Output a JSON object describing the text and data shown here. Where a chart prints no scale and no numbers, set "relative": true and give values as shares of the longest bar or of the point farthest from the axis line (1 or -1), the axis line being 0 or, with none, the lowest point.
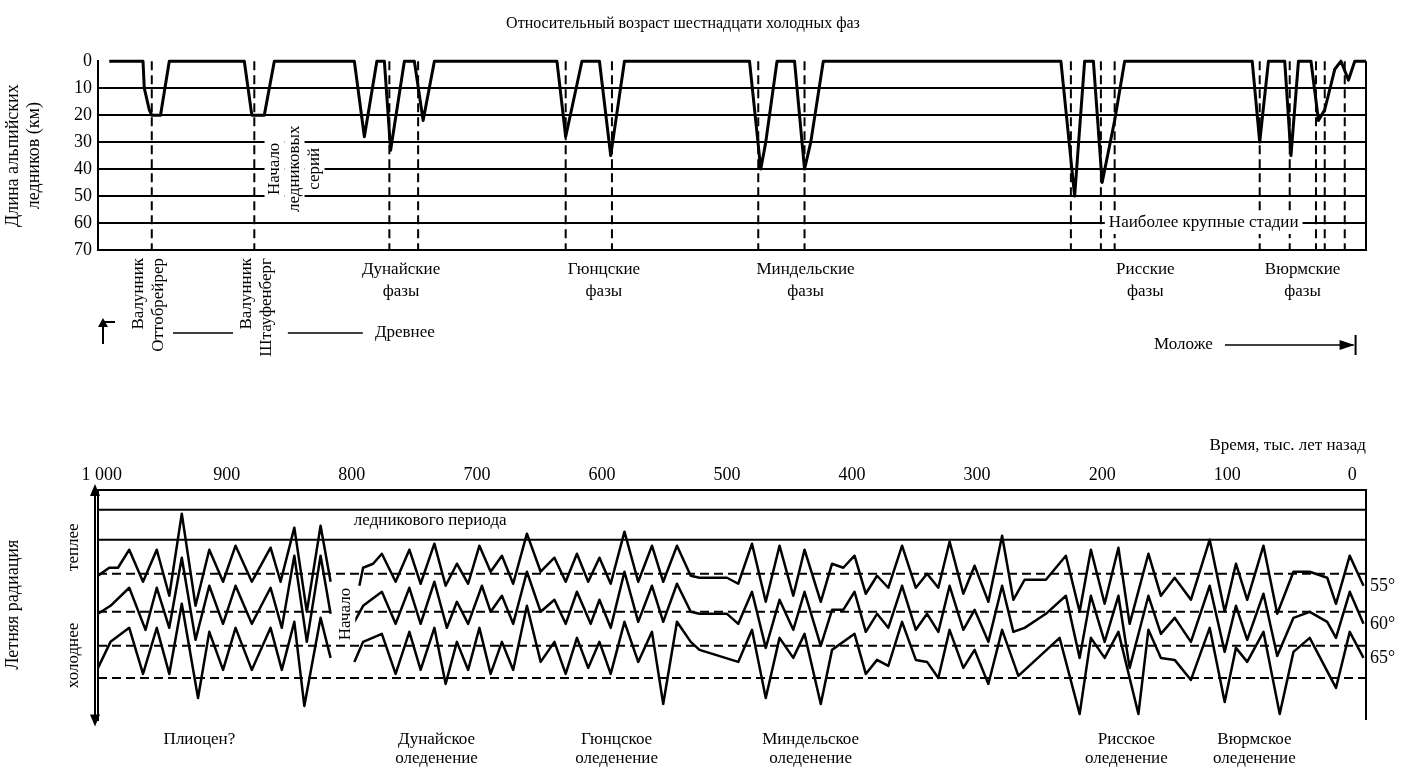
{
  "chart_data": [
    {
      "type": "line",
      "title": "Относительный возраст шестнадцати холодных фаз",
      "ylabel": "Длина альпийских ледников (км)",
      "xlim": [
        1003,
        -11
      ],
      "ylim": [
        70,
        0
      ],
      "yticks": [
        0,
        10,
        20,
        30,
        40,
        50,
        60,
        70
      ],
      "grid": "y",
      "tick_labels": "y",
      "series": [
        {
          "color": "#000000",
          "x": [
            994,
            967,
            966,
            962,
            960,
            953,
            946,
            886,
            880,
            870,
            862,
            798,
            790,
            780,
            774,
            769,
            758,
            750,
            743,
            734,
            636,
            629,
            616,
            602,
            593,
            582,
            482,
            473,
            469,
            460,
            446,
            438,
            433,
            423,
            233,
            222,
            214,
            207,
            200,
            190,
            182,
            80,
            74,
            67,
            54,
            49,
            43,
            33,
            27,
            22,
            14,
            9,
            3,
            -2,
            -11
          ],
          "values": [
            0,
            0,
            10,
            18,
            20,
            20,
            0,
            0,
            20,
            20,
            0,
            0,
            28,
            0,
            0,
            33,
            0,
            0,
            22,
            0,
            0,
            28,
            0,
            0,
            35,
            0,
            0,
            40,
            30,
            0,
            0,
            40,
            30,
            0,
            0,
            50,
            0,
            0,
            45,
            22,
            0,
            0,
            30,
            0,
            0,
            35,
            0,
            0,
            22,
            18,
            3,
            0,
            7,
            0,
            0
          ]
        }
      ],
      "ref_lines": [
        {
          "axis": "x",
          "value": 960,
          "line_style": "dashed"
        },
        {
          "axis": "x",
          "value": 878,
          "line_style": "dashed"
        },
        {
          "axis": "x",
          "value": 770,
          "line_style": "dashed"
        },
        {
          "axis": "x",
          "value": 747,
          "line_style": "dashed"
        },
        {
          "axis": "x",
          "value": 629,
          "line_style": "dashed"
        },
        {
          "axis": "x",
          "value": 592,
          "line_style": "dashed"
        },
        {
          "axis": "x",
          "value": 475,
          "line_style": "dashed"
        },
        {
          "axis": "x",
          "value": 438,
          "line_style": "dashed"
        },
        {
          "axis": "x",
          "value": 225,
          "line_style": "dashed"
        },
        {
          "axis": "x",
          "value": 201,
          "line_style": "dashed"
        },
        {
          "axis": "x",
          "value": 190,
          "line_style": "dashed"
        },
        {
          "axis": "x",
          "value": 74,
          "line_style": "dashed"
        },
        {
          "axis": "x",
          "value": 50,
          "line_style": "dashed"
        },
        {
          "axis": "x",
          "value": 29,
          "line_style": "dashed"
        },
        {
          "axis": "x",
          "value": 22,
          "line_style": "dashed"
        },
        {
          "axis": "x",
          "value": 6,
          "line_style": "dashed"
        }
      ],
      "annotations": [
        "Валунник Оттобрейрер",
        "Валунник Штауфенберг",
        "Начало ледниковых серий",
        "Дунайские фазы",
        "Гюнцские фазы",
        "Миндельские фазы",
        "Рисские фазы",
        "Вюрмские фазы",
        "Наиболее крупные стадии",
        "Древнее",
        "Моложе"
      ]
    },
    {
      "type": "line",
      "xlabel": "Время, тыс. лет назад",
      "ylabel": "Летняя радиация",
      "xlim": [
        1003,
        -11
      ],
      "xticks": [
        {
          "value": 1000,
          "label": "1 000"
        },
        900,
        800,
        700,
        600,
        500,
        400,
        300,
        200,
        100,
        0
      ],
      "relative": true,
      "tick_labels": "x",
      "series": [
        {
          "name": "55°",
          "color": "#000000",
          "x": [
            1003,
            994,
            987,
            978,
            967,
            956,
            946,
            936,
            925,
            914,
            903,
            893,
            880,
            865,
            857,
            846,
            836,
            825,
            817,
            806,
            794,
            791,
            783,
            776,
            765,
            754,
            745,
            734,
            725,
            716,
            707,
            698,
            689,
            680,
            671,
            660,
            649,
            638,
            629,
            620,
            611,
            602,
            593,
            582,
            571,
            560,
            551,
            540,
            529,
            522,
            500,
            491,
            480,
            469,
            458,
            447,
            438,
            425,
            416,
            407,
            398,
            389,
            380,
            371,
            360,
            349,
            340,
            331,
            322,
            311,
            302,
            291,
            280,
            271,
            262,
            245,
            229,
            218,
            209,
            198,
            187,
            178,
            163,
            153,
            142,
            129,
            114,
            102,
            93,
            84,
            71,
            60,
            47,
            34,
            20,
            13,
            2,
            -9
          ],
          "values": [
            0.69,
            0.73,
            0.73,
            0.82,
            0.66,
            0.82,
            0.59,
            1.0,
            0.54,
            0.82,
            0.66,
            0.84,
            0.66,
            0.83,
            0.66,
            0.93,
            0.51,
            0.94,
            0.66,
            null,
            0.64,
            0.73,
            0.75,
            0.8,
            0.66,
            0.82,
            0.65,
            0.85,
            0.64,
            0.75,
            0.65,
            0.84,
            0.71,
            0.79,
            0.65,
            0.9,
            0.71,
            0.78,
            0.66,
            0.8,
            0.66,
            0.78,
            0.65,
            0.91,
            0.66,
            0.84,
            0.66,
            0.84,
            0.69,
            0.68,
            0.68,
            0.65,
            0.85,
            0.56,
            0.84,
            0.59,
            0.82,
            0.56,
            0.75,
            0.73,
            0.79,
            0.6,
            0.69,
            0.63,
            0.84,
            0.63,
            0.7,
            0.63,
            0.86,
            0.6,
            0.74,
            0.56,
            0.89,
            0.57,
            0.67,
            0.67,
            0.79,
            0.51,
            0.82,
            0.55,
            0.83,
            0.45,
            0.8,
            0.59,
            0.68,
            0.57,
            0.87,
            0.51,
            0.75,
            0.57,
            0.84,
            0.5,
            0.71,
            0.71,
            0.68,
            0.55,
            0.79,
            0.64
          ]
        },
        {
          "name": "60°",
          "color": "#000000",
          "x": [
            1003,
            993,
            978,
            965,
            956,
            946,
            936,
            925,
            914,
            903,
            893,
            880,
            865,
            856,
            846,
            836,
            825,
            817,
            806,
            798,
            791,
            776,
            765,
            754,
            745,
            734,
            724,
            716,
            707,
            696,
            689,
            680,
            671,
            660,
            649,
            638,
            629,
            620,
            609,
            602,
            593,
            582,
            571,
            560,
            551,
            540,
            529,
            522,
            500,
            491,
            480,
            469,
            458,
            447,
            438,
            425,
            416,
            407,
            398,
            389,
            380,
            371,
            360,
            349,
            340,
            331,
            322,
            311,
            302,
            291,
            280,
            271,
            262,
            245,
            229,
            218,
            209,
            198,
            187,
            178,
            163,
            153,
            142,
            129,
            114,
            102,
            93,
            84,
            71,
            60,
            47,
            34,
            20,
            13,
            2,
            -9
          ],
          "values": [
            0.5,
            0.54,
            0.63,
            0.42,
            0.63,
            0.43,
            0.78,
            0.37,
            0.64,
            0.45,
            0.64,
            0.45,
            0.63,
            0.43,
            0.79,
            0.36,
            0.79,
            0.5,
            null,
            0.46,
            0.54,
            0.61,
            0.45,
            0.63,
            0.45,
            0.66,
            0.43,
            0.56,
            0.45,
            0.64,
            0.51,
            0.59,
            0.45,
            0.71,
            0.51,
            0.57,
            0.45,
            0.61,
            0.45,
            0.57,
            0.43,
            0.71,
            0.46,
            0.64,
            0.46,
            0.65,
            0.51,
            0.5,
            0.5,
            0.45,
            0.61,
            0.33,
            0.57,
            0.42,
            0.61,
            0.34,
            0.52,
            0.52,
            0.61,
            0.41,
            0.5,
            0.43,
            0.64,
            0.42,
            0.5,
            0.41,
            0.64,
            0.42,
            0.52,
            0.36,
            0.64,
            0.41,
            0.43,
            0.5,
            0.59,
            0.28,
            0.59,
            0.36,
            0.59,
            0.23,
            0.59,
            0.4,
            0.48,
            0.36,
            0.64,
            0.31,
            0.54,
            0.37,
            0.6,
            0.29,
            0.48,
            0.51,
            0.46,
            0.38,
            0.61,
            0.45
          ]
        },
        {
          "name": "65°",
          "color": "#000000",
          "x": [
            1003,
            993,
            978,
            967,
            956,
            946,
            936,
            923,
            914,
            903,
            893,
            880,
            865,
            856,
            846,
            838,
            825,
            817,
            806,
            798,
            791,
            776,
            765,
            754,
            745,
            734,
            725,
            716,
            707,
            698,
            689,
            680,
            671,
            660,
            649,
            638,
            629,
            620,
            611,
            602,
            593,
            582,
            571,
            560,
            551,
            540,
            529,
            522,
            491,
            480,
            469,
            458,
            447,
            438,
            425,
            416,
            398,
            389,
            380,
            371,
            360,
            349,
            340,
            331,
            322,
            311,
            302,
            291,
            280,
            267,
            234,
            218,
            209,
            198,
            187,
            171,
            163,
            153,
            142,
            129,
            114,
            102,
            93,
            84,
            71,
            58,
            47,
            34,
            13,
            2,
            -9
          ],
          "values": [
            0.23,
            0.36,
            0.43,
            0.2,
            0.43,
            0.2,
            0.55,
            0.08,
            0.41,
            0.22,
            0.43,
            0.22,
            0.43,
            0.22,
            0.46,
            0.04,
            0.48,
            0.28,
            null,
            0.26,
            0.36,
            0.4,
            0.2,
            0.41,
            0.22,
            0.43,
            0.15,
            0.36,
            0.22,
            0.43,
            0.2,
            0.36,
            0.22,
            0.54,
            0.26,
            0.36,
            0.2,
            0.38,
            0.23,
            0.36,
            0.2,
            0.46,
            0.26,
            0.41,
            0.05,
            0.46,
            0.36,
            0.32,
            0.26,
            0.42,
            0.08,
            0.38,
            0.28,
            0.4,
            0.05,
            0.32,
            0.4,
            0.2,
            0.27,
            0.24,
            0.46,
            0.27,
            0.26,
            0.18,
            0.42,
            0.23,
            0.32,
            0.15,
            0.42,
            0.19,
            0.38,
            0.0,
            0.38,
            0.28,
            0.41,
            0.0,
            0.42,
            0.28,
            0.27,
            0.17,
            0.43,
            0.06,
            0.33,
            0.26,
            0.41,
            0.0,
            0.31,
            0.38,
            0.13,
            0.41,
            0.28
          ]
        }
      ],
      "ref_lines": [
        {
          "axis": "y",
          "value": 1.02,
          "line_style": "solid"
        },
        {
          "axis": "y",
          "value": 0.87,
          "line_style": "solid"
        },
        {
          "axis": "y",
          "value": 0.7,
          "line_style": "dashed"
        },
        {
          "axis": "y",
          "value": 0.51,
          "line_style": "dashed"
        },
        {
          "axis": "y",
          "value": 0.34,
          "line_style": "dashed"
        },
        {
          "axis": "y",
          "value": 0.18,
          "line_style": "dashed"
        }
      ],
      "annotations": [
        "Начало",
        "ледникового периода",
        "Плиоцен?",
        "Дунайское оледенение",
        "Гюнцское оледенение",
        "Миндельское оледенение",
        "Рисское оледенение",
        "Вюрмское оледенение",
        "теплее",
        "холоднее"
      ]
    }
  ]
}
